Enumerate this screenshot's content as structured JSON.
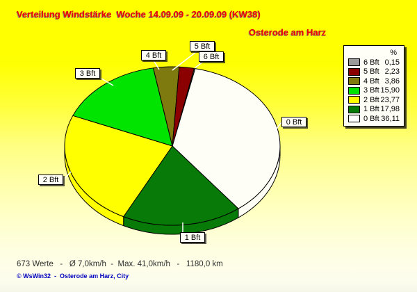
{
  "title": "Verteilung Windstärke  Woche 14.09.09 - 20.09.09 (KW38)",
  "station": "Osterode am Harz",
  "legend": {
    "header": "%",
    "rows": [
      {
        "label": "6 Bft",
        "value": "0,15",
        "color": "#9a9a9a"
      },
      {
        "label": "5 Bft",
        "value": "2,23",
        "color": "#8b0000"
      },
      {
        "label": "4 Bft",
        "value": "3,86",
        "color": "#7e7a10"
      },
      {
        "label": "3 Bft",
        "value": "15,90",
        "color": "#00e400"
      },
      {
        "label": "2 Bft",
        "value": "23,77",
        "color": "#ffff00"
      },
      {
        "label": "1 Bft",
        "value": "17,98",
        "color": "#077a07"
      },
      {
        "label": "0 Bft",
        "value": "36,11",
        "color": "#ffffff"
      }
    ]
  },
  "chart_data": {
    "type": "pie",
    "style": "3d-pie",
    "title": "Verteilung Windstärke  Woche 14.09.09 - 20.09.09 (KW38)",
    "subtitle": "Osterode am Harz",
    "unit": "%",
    "direction": "clockwise",
    "start_angle_deg": 11.7,
    "slices": [
      {
        "label": "6 Bft",
        "value": 0.15,
        "color": "#9a9a9a"
      },
      {
        "label": "0 Bft",
        "value": 36.11,
        "color": "#fefef6"
      },
      {
        "label": "1 Bft",
        "value": 17.98,
        "color": "#077a07"
      },
      {
        "label": "2 Bft",
        "value": 23.77,
        "color": "#ffff00"
      },
      {
        "label": "3 Bft",
        "value": 15.9,
        "color": "#00e400"
      },
      {
        "label": "4 Bft",
        "value": 3.86,
        "color": "#7e7a10"
      },
      {
        "label": "5 Bft",
        "value": 2.23,
        "color": "#8b0000"
      }
    ],
    "callouts": [
      {
        "text": "5 Bft"
      },
      {
        "text": "6 Bft"
      },
      {
        "text": "4 Bft"
      },
      {
        "text": "3 Bft"
      },
      {
        "text": "0 Bft"
      },
      {
        "text": "2 Bft"
      },
      {
        "text": "1 Bft"
      }
    ]
  },
  "footer": {
    "stats": "673 Werte   -   Ø 7,0km/h  -  Max. 41,0km/h   -   1180,0 km",
    "copyright": "© WsWin32  -  Osterode am Harz, City"
  }
}
